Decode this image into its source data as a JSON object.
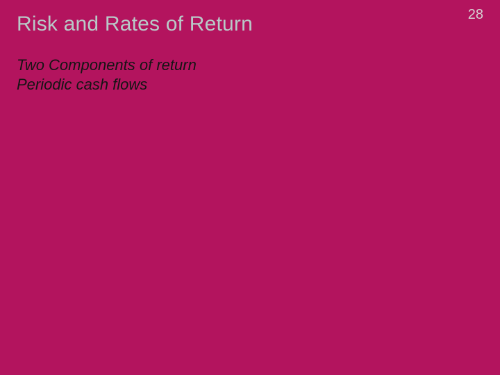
{
  "slide": {
    "background_color": "#b3145e",
    "page_number": "28",
    "page_number_color": "#d7d1d3",
    "page_number_fontsize": 20,
    "title": "Risk and Rates of Return",
    "title_color": "#b9c9c8",
    "title_fontsize": 30,
    "subtitle_line1": "Two Components of return",
    "subtitle_line2": "Periodic cash flows",
    "subtitle_color": "#141414",
    "subtitle_fontsize": 22
  }
}
